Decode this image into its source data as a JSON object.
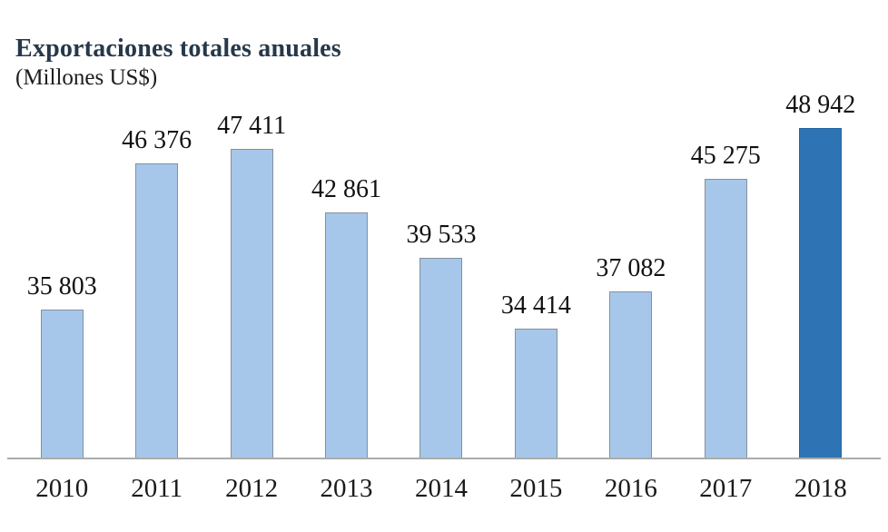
{
  "chart": {
    "title": "Exportaciones totales anuales",
    "subtitle": "(Millones US$)"
  },
  "colors": {
    "background": "#FFFFFF",
    "bar_fill": "#A6C7E9",
    "bar_border": "#84909C",
    "highlight_fill": "#2E74B5",
    "highlight_border": "#2766A3",
    "title": "#26384A",
    "subtitle": "#1C1C1C",
    "value_label": "#121212",
    "axis_line": "#ABABAB",
    "tick_label": "#1A1A1A"
  },
  "chart_data": {
    "type": "bar",
    "title": "Exportaciones totales anuales",
    "subtitle": "(Millones US$)",
    "categories": [
      "2010",
      "2011",
      "2012",
      "2013",
      "2014",
      "2015",
      "2016",
      "2017",
      "2018"
    ],
    "values": [
      35803,
      46376,
      47411,
      42861,
      39533,
      34414,
      37082,
      45275,
      48942
    ],
    "value_labels": [
      "35 803",
      "46 376",
      "47 411",
      "42 861",
      "39 533",
      "34 414",
      "37 082",
      "45 275",
      "48 942"
    ],
    "highlight_index": 8,
    "xlabel": "",
    "ylabel": "",
    "ylim": [
      25000,
      51650
    ],
    "grid": false,
    "legend_position": "none",
    "value_labels_position": "above-bars"
  }
}
